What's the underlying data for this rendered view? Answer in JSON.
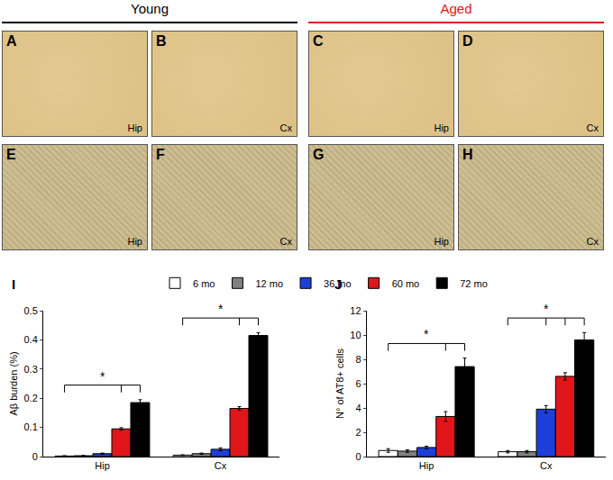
{
  "figure": {
    "groups": [
      {
        "text": "Young",
        "color": "#000000"
      },
      {
        "text": "Aged",
        "color": "#e0161b"
      }
    ],
    "panels": [
      [
        {
          "letter": "A",
          "region": "Hip"
        },
        {
          "letter": "B",
          "region": "Cx"
        },
        {
          "letter": "C",
          "region": "Hip"
        },
        {
          "letter": "D",
          "region": "Cx"
        }
      ],
      [
        {
          "letter": "E",
          "region": "Hip"
        },
        {
          "letter": "F",
          "region": "Cx"
        },
        {
          "letter": "G",
          "region": "Hip"
        },
        {
          "letter": "H",
          "region": "Cx"
        }
      ]
    ]
  },
  "chart_data": [
    {
      "type": "bar",
      "title": "I",
      "y_label": "Aβ burden (%)",
      "categories": [
        "Hip",
        "Cx"
      ],
      "series": [
        {
          "name": "6 mo",
          "color": "#ffffff",
          "values": [
            0.002,
            0.005
          ],
          "errors": [
            0.001,
            0.001
          ]
        },
        {
          "name": "12 mo",
          "color": "#808080",
          "values": [
            0.003,
            0.01
          ],
          "errors": [
            0.001,
            0.002
          ]
        },
        {
          "name": "36 mo",
          "color": "#1c3fd8",
          "values": [
            0.01,
            0.025
          ],
          "errors": [
            0.002,
            0.005
          ]
        },
        {
          "name": "60 mo",
          "color": "#e0161b",
          "values": [
            0.095,
            0.165
          ],
          "errors": [
            0.004,
            0.006
          ]
        },
        {
          "name": "72 mo",
          "color": "#000000",
          "values": [
            0.185,
            0.415
          ],
          "errors": [
            0.01,
            0.01
          ]
        }
      ],
      "ylim": [
        0,
        0.5
      ],
      "yticks": [
        0,
        0.1,
        0.2,
        0.3,
        0.4,
        0.5
      ],
      "grid": false,
      "legend": "top",
      "significance": [
        {
          "category": "Hip",
          "from": "6 mo",
          "to": [
            "60 mo",
            "72 mo"
          ],
          "text": "*"
        },
        {
          "category": "Cx",
          "from": "6 mo",
          "to": [
            "60 mo",
            "72 mo"
          ],
          "text": "*"
        }
      ]
    },
    {
      "type": "bar",
      "title": "J",
      "y_label": "N° of AT8+ cells",
      "categories": [
        "Hip",
        "Cx"
      ],
      "series": [
        {
          "name": "6 mo",
          "color": "#ffffff",
          "values": [
            0.5,
            0.4
          ],
          "errors": [
            0.15,
            0.1
          ]
        },
        {
          "name": "12 mo",
          "color": "#808080",
          "values": [
            0.45,
            0.4
          ],
          "errors": [
            0.1,
            0.1
          ]
        },
        {
          "name": "36 mo",
          "color": "#1c3fd8",
          "values": [
            0.75,
            3.9
          ],
          "errors": [
            0.1,
            0.3
          ]
        },
        {
          "name": "60 mo",
          "color": "#e0161b",
          "values": [
            3.3,
            6.6
          ],
          "errors": [
            0.4,
            0.3
          ]
        },
        {
          "name": "72 mo",
          "color": "#000000",
          "values": [
            7.4,
            9.6
          ],
          "errors": [
            0.7,
            0.6
          ]
        }
      ],
      "ylim": [
        0,
        12
      ],
      "yticks": [
        0,
        2,
        4,
        6,
        8,
        10,
        12
      ],
      "grid": false,
      "significance": [
        {
          "category": "Hip",
          "from": "6 mo",
          "to": [
            "60 mo",
            "72 mo"
          ],
          "text": "*"
        },
        {
          "category": "Cx",
          "from": "6 mo",
          "to": [
            "36 mo",
            "60 mo",
            "72 mo"
          ],
          "text": "*"
        }
      ]
    }
  ]
}
